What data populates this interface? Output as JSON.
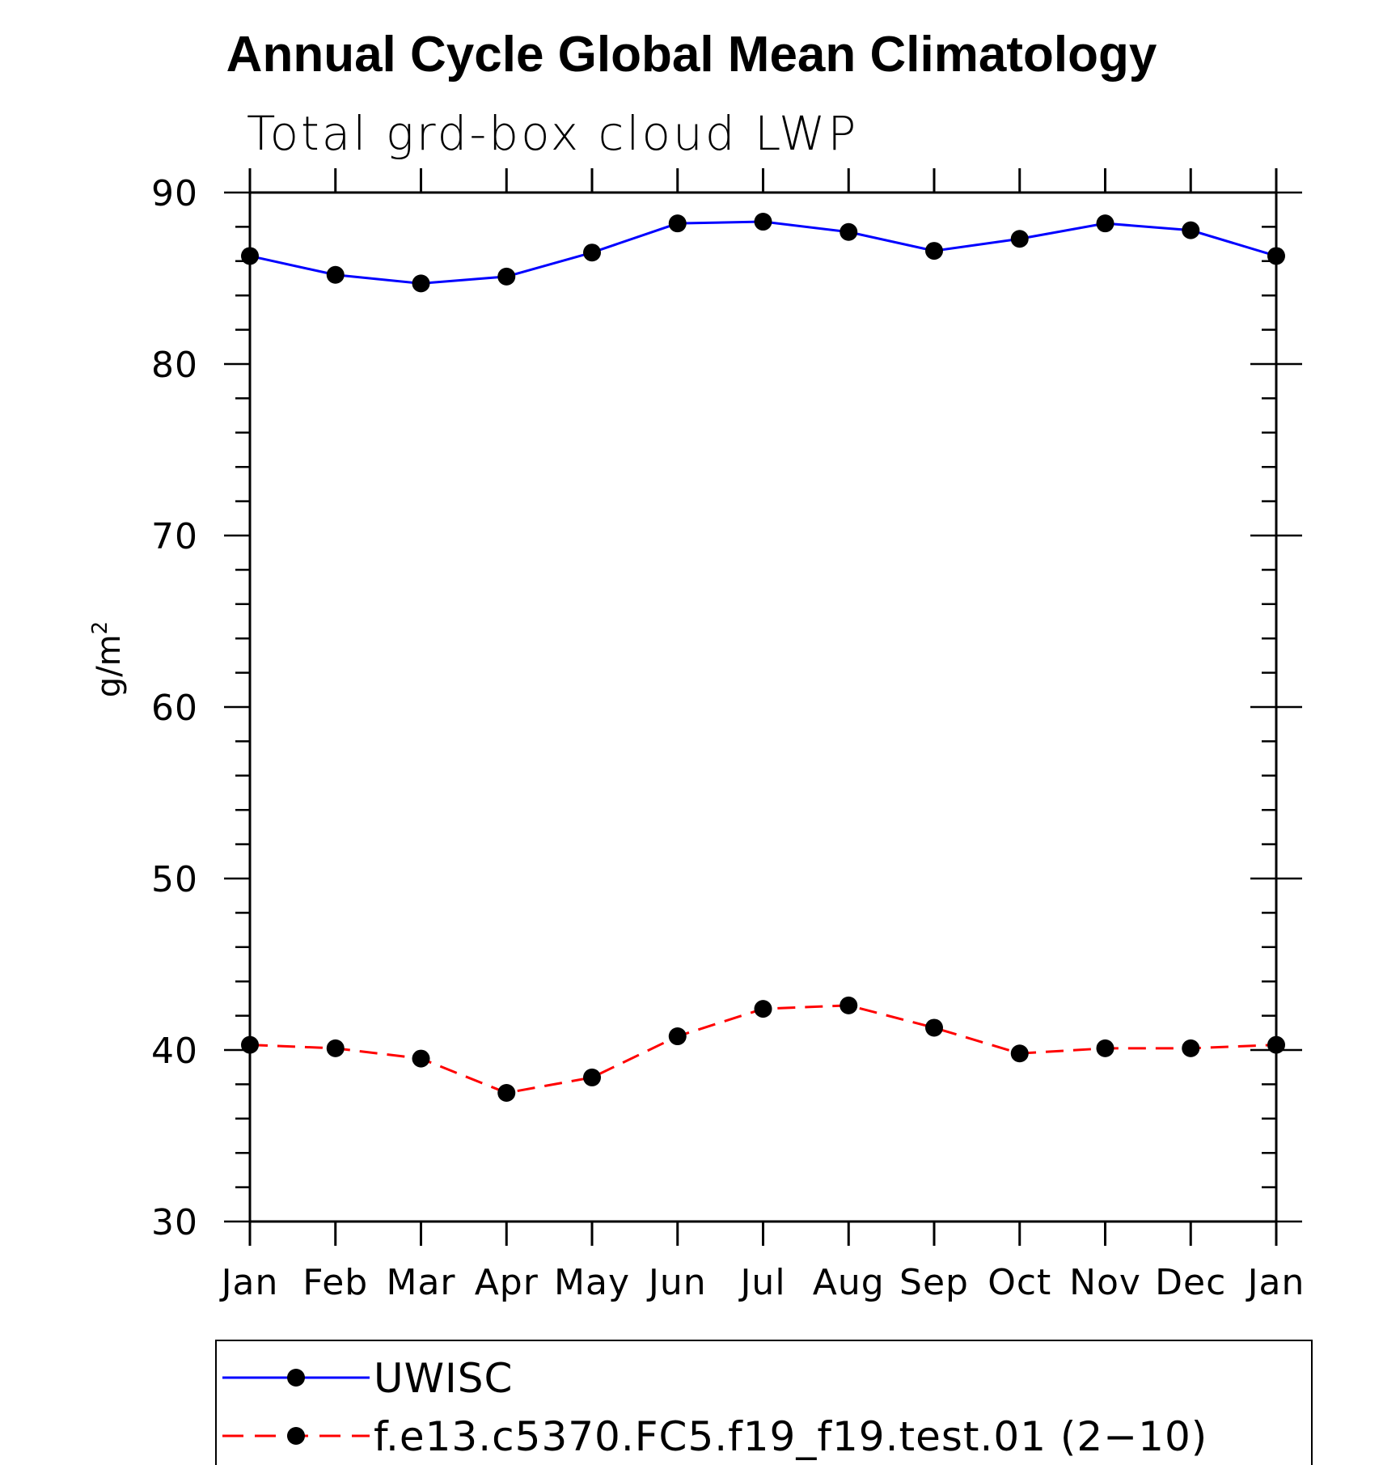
{
  "chart_data": {
    "type": "line",
    "title": "Annual Cycle Global Mean Climatology",
    "subtitle": "Total grd-box cloud LWP",
    "ylabel": "g/m",
    "ylabel_superscript": "2",
    "xlabel": "",
    "categories": [
      "Jan",
      "Feb",
      "Mar",
      "Apr",
      "May",
      "Jun",
      "Jul",
      "Aug",
      "Sep",
      "Oct",
      "Nov",
      "Dec",
      "Jan"
    ],
    "ylim": [
      30,
      90
    ],
    "yticks": [
      "30",
      "40",
      "50",
      "60",
      "70",
      "80",
      "90"
    ],
    "grid": false,
    "legend_position": "bottom",
    "series": [
      {
        "name": "UWISC",
        "color": "#0000ff",
        "line_style": "solid",
        "marker": "filled-circle",
        "values": [
          86.3,
          85.2,
          84.7,
          85.1,
          86.5,
          88.2,
          88.3,
          87.7,
          86.6,
          87.3,
          88.2,
          87.8,
          86.3
        ]
      },
      {
        "name": "f.e13.c5370.FC5.f19_f19.test.01 (2−10)",
        "color": "#ff0000",
        "line_style": "dashed",
        "marker": "filled-circle",
        "values": [
          40.3,
          40.1,
          39.5,
          37.5,
          38.4,
          40.8,
          42.4,
          42.6,
          41.3,
          39.8,
          40.1,
          40.1,
          40.3
        ]
      }
    ]
  }
}
